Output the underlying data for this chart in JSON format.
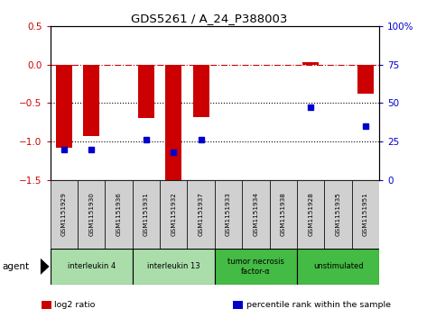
{
  "title": "GDS5261 / A_24_P388003",
  "samples": [
    "GSM1151929",
    "GSM1151930",
    "GSM1151936",
    "GSM1151931",
    "GSM1151932",
    "GSM1151937",
    "GSM1151933",
    "GSM1151934",
    "GSM1151938",
    "GSM1151928",
    "GSM1151935",
    "GSM1151951"
  ],
  "log2_ratio": [
    -1.08,
    -0.93,
    0.0,
    -0.7,
    -1.52,
    -0.68,
    0.0,
    0.0,
    0.0,
    0.03,
    0.0,
    -0.38
  ],
  "percentile": [
    20,
    20,
    null,
    26,
    18,
    26,
    null,
    null,
    null,
    47,
    null,
    35
  ],
  "ylim_left": [
    -1.5,
    0.5
  ],
  "ylim_right": [
    0,
    100
  ],
  "left_ticks": [
    -1.5,
    -1.0,
    -0.5,
    0.0,
    0.5
  ],
  "right_ticks": [
    0,
    25,
    50,
    75,
    100
  ],
  "right_tick_labels": [
    "0",
    "25",
    "50",
    "75",
    "100%"
  ],
  "hlines": [
    0.0,
    -0.5,
    -1.0
  ],
  "hline_colors": [
    "#cc0000",
    "#000000",
    "#000000"
  ],
  "hline_styles": [
    "dashdot",
    "dotted",
    "dotted"
  ],
  "agent_groups": [
    {
      "label": "interleukin 4",
      "start": 0,
      "end": 3,
      "color": "#aaddaa"
    },
    {
      "label": "interleukin 13",
      "start": 3,
      "end": 6,
      "color": "#aaddaa"
    },
    {
      "label": "tumor necrosis\nfactor-α",
      "start": 6,
      "end": 9,
      "color": "#44bb44"
    },
    {
      "label": "unstimulated",
      "start": 9,
      "end": 12,
      "color": "#44bb44"
    }
  ],
  "bar_color": "#cc0000",
  "dot_color": "#0000cc",
  "background_color": "#ffffff",
  "plot_bg_color": "#ffffff",
  "agent_label": "agent",
  "legend_items": [
    {
      "color": "#cc0000",
      "label": "log2 ratio"
    },
    {
      "color": "#0000cc",
      "label": "percentile rank within the sample"
    }
  ],
  "n_samples": 12,
  "sample_cell_color": "#d0d0d0"
}
